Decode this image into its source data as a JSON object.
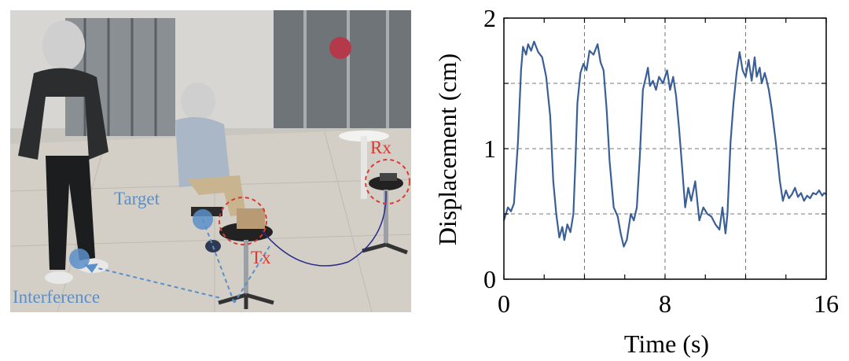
{
  "photo": {
    "labels": {
      "target": "Target",
      "interference": "Interference",
      "tx": "Tx",
      "rx": "Rx"
    },
    "colors": {
      "annotation_blue": "#5b8fc9",
      "annotation_red": "#d93b34"
    }
  },
  "chart_data": {
    "type": "line",
    "xlabel": "Time (s)",
    "ylabel": "Displacement (cm)",
    "xlim": [
      0,
      16
    ],
    "ylim": [
      0,
      2
    ],
    "xticks": [
      0,
      8,
      16
    ],
    "yticks": [
      0,
      1,
      2
    ],
    "grid_x": [
      4,
      8,
      12
    ],
    "grid_y": [
      0.5,
      1,
      1.5
    ],
    "grid": true,
    "line_color": "#3a5f96",
    "series": [
      {
        "x": [
          0,
          0.2,
          0.35,
          0.5,
          0.7,
          0.85,
          0.95,
          1.1,
          1.2,
          1.35,
          1.5,
          1.7,
          1.9,
          2.1,
          2.3,
          2.45,
          2.6,
          2.75,
          2.9,
          3.0,
          3.15,
          3.3,
          3.45,
          3.55,
          3.65,
          3.8,
          3.95,
          4.1,
          4.25,
          4.45,
          4.65,
          4.8,
          4.95,
          5.1,
          5.25,
          5.45,
          5.65,
          5.8,
          5.95,
          6.1,
          6.3,
          6.45,
          6.6,
          6.75,
          6.9,
          7.05,
          7.15,
          7.25,
          7.4,
          7.55,
          7.7,
          7.9,
          8.1,
          8.25,
          8.4,
          8.55,
          8.7,
          8.85,
          9.0,
          9.15,
          9.3,
          9.5,
          9.7,
          9.9,
          10.1,
          10.3,
          10.5,
          10.7,
          10.85,
          11.0,
          11.1,
          11.25,
          11.4,
          11.55,
          11.7,
          11.85,
          12.0,
          12.15,
          12.3,
          12.45,
          12.55,
          12.7,
          12.8,
          12.95,
          13.05,
          13.15,
          13.3,
          13.5,
          13.7,
          13.85,
          14.0,
          14.15,
          14.3,
          14.45,
          14.6,
          14.75,
          14.9,
          15.05,
          15.2,
          15.35,
          15.5,
          15.65,
          15.8,
          15.9,
          16.0
        ],
        "y": [
          0.45,
          0.55,
          0.52,
          0.58,
          1.05,
          1.6,
          1.78,
          1.72,
          1.8,
          1.75,
          1.82,
          1.74,
          1.7,
          1.55,
          1.25,
          0.75,
          0.5,
          0.32,
          0.4,
          0.3,
          0.42,
          0.36,
          0.5,
          0.9,
          1.35,
          1.58,
          1.65,
          1.6,
          1.75,
          1.72,
          1.8,
          1.66,
          1.6,
          1.3,
          0.9,
          0.55,
          0.48,
          0.35,
          0.25,
          0.3,
          0.5,
          0.45,
          0.55,
          0.95,
          1.45,
          1.55,
          1.62,
          1.48,
          1.52,
          1.45,
          1.55,
          1.5,
          1.6,
          1.45,
          1.55,
          1.4,
          1.15,
          0.85,
          0.55,
          0.7,
          0.6,
          0.75,
          0.45,
          0.55,
          0.5,
          0.48,
          0.42,
          0.38,
          0.55,
          0.35,
          0.5,
          1.05,
          1.35,
          1.58,
          1.74,
          1.6,
          1.55,
          1.68,
          1.52,
          1.7,
          1.55,
          1.62,
          1.5,
          1.58,
          1.52,
          1.45,
          1.3,
          1.05,
          0.75,
          0.6,
          0.68,
          0.62,
          0.65,
          0.7,
          0.63,
          0.66,
          0.6,
          0.64,
          0.62,
          0.66,
          0.65,
          0.68,
          0.64,
          0.66,
          0.65
        ]
      }
    ]
  }
}
